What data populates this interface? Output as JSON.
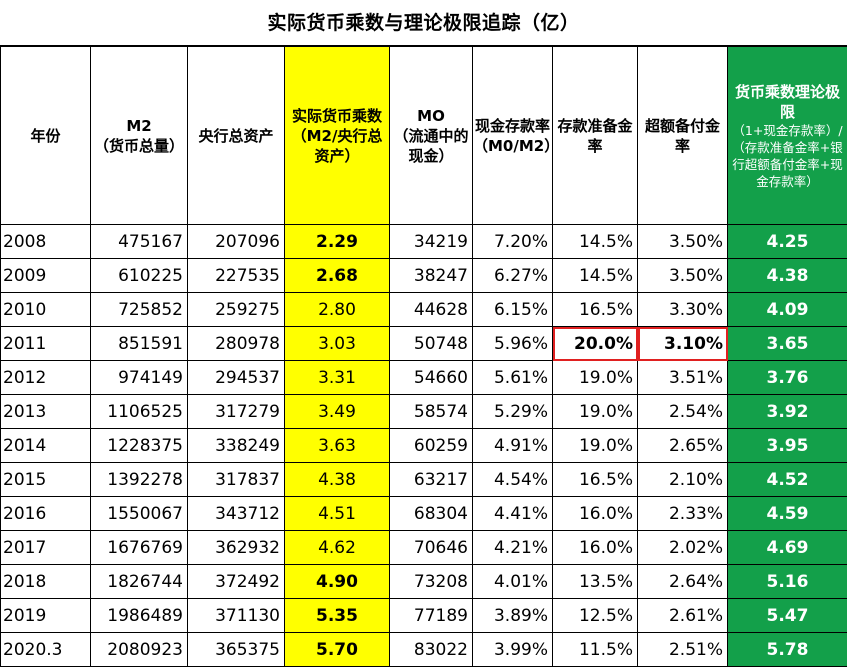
{
  "title": "实际货币乘数与理论极限追踪（亿）",
  "headers": {
    "year": "年份",
    "m2_main": "M2",
    "m2_sub": "（货币总量）",
    "assets": "央行总资产",
    "mult": "实际货币乘数（M2/央行总资产）",
    "m0_main": "MO",
    "m0_sub": "（流通中的现金）",
    "cash_ratio": "现金存款率（M0/M2）",
    "rrr": "存款准备金率",
    "excess": "超额备付金率",
    "limit_main": "货币乘数理论极限",
    "limit_sub": "（1+现金存款率）/（存款准备金率+银行超额备付金率+现金存款率）"
  },
  "rows": [
    {
      "year": "2008",
      "m2": "475167",
      "assets": "207096",
      "mult": "2.29",
      "m0": "34219",
      "cash": "7.20%",
      "rrr": "14.5%",
      "excess": "3.50%",
      "limit": "4.25"
    },
    {
      "year": "2009",
      "m2": "610225",
      "assets": "227535",
      "mult": "2.68",
      "m0": "38247",
      "cash": "6.27%",
      "rrr": "14.5%",
      "excess": "3.50%",
      "limit": "4.38"
    },
    {
      "year": "2010",
      "m2": "725852",
      "assets": "259275",
      "mult": "2.80",
      "m0": "44628",
      "cash": "6.15%",
      "rrr": "16.5%",
      "excess": "3.30%",
      "limit": "4.09"
    },
    {
      "year": "2011",
      "m2": "851591",
      "assets": "280978",
      "mult": "3.03",
      "m0": "50748",
      "cash": "5.96%",
      "rrr": "20.0%",
      "excess": "3.10%",
      "limit": "3.65"
    },
    {
      "year": "2012",
      "m2": "974149",
      "assets": "294537",
      "mult": "3.31",
      "m0": "54660",
      "cash": "5.61%",
      "rrr": "19.0%",
      "excess": "3.51%",
      "limit": "3.76"
    },
    {
      "year": "2013",
      "m2": "1106525",
      "assets": "317279",
      "mult": "3.49",
      "m0": "58574",
      "cash": "5.29%",
      "rrr": "19.0%",
      "excess": "2.54%",
      "limit": "3.92"
    },
    {
      "year": "2014",
      "m2": "1228375",
      "assets": "338249",
      "mult": "3.63",
      "m0": "60259",
      "cash": "4.91%",
      "rrr": "19.0%",
      "excess": "2.65%",
      "limit": "3.95"
    },
    {
      "year": "2015",
      "m2": "1392278",
      "assets": "317837",
      "mult": "4.38",
      "m0": "63217",
      "cash": "4.54%",
      "rrr": "16.5%",
      "excess": "2.10%",
      "limit": "4.52"
    },
    {
      "year": "2016",
      "m2": "1550067",
      "assets": "343712",
      "mult": "4.51",
      "m0": "68304",
      "cash": "4.41%",
      "rrr": "16.0%",
      "excess": "2.33%",
      "limit": "4.59"
    },
    {
      "year": "2017",
      "m2": "1676769",
      "assets": "362932",
      "mult": "4.62",
      "m0": "70646",
      "cash": "4.21%",
      "rrr": "16.0%",
      "excess": "2.02%",
      "limit": "4.69"
    },
    {
      "year": "2018",
      "m2": "1826744",
      "assets": "372492",
      "mult": "4.90",
      "m0": "73208",
      "cash": "4.01%",
      "rrr": "13.5%",
      "excess": "2.64%",
      "limit": "5.16"
    },
    {
      "year": "2019",
      "m2": "1986489",
      "assets": "371130",
      "mult": "5.35",
      "m0": "77189",
      "cash": "3.89%",
      "rrr": "12.5%",
      "excess": "2.61%",
      "limit": "5.47"
    },
    {
      "year": "2020.3",
      "m2": "2080923",
      "assets": "365375",
      "mult": "5.70",
      "m0": "83022",
      "cash": "3.99%",
      "rrr": "11.5%",
      "excess": "2.51%",
      "limit": "5.78"
    }
  ],
  "colors": {
    "yellow": "#ffff00",
    "green": "#13a04a",
    "highlight_box": "#e02020"
  }
}
